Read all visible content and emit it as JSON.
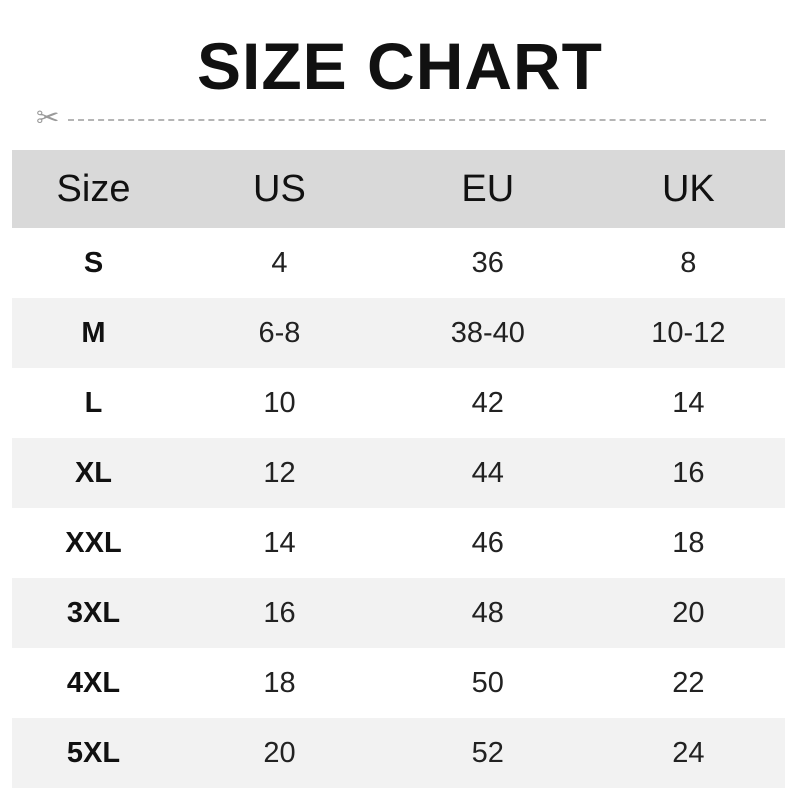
{
  "title": "SIZE CHART",
  "headers": [
    "Size",
    "US",
    "EU",
    "UK"
  ],
  "rows": [
    [
      "S",
      "4",
      "36",
      "8"
    ],
    [
      "M",
      "6-8",
      "38-40",
      "10-12"
    ],
    [
      "L",
      "10",
      "42",
      "14"
    ],
    [
      "XL",
      "12",
      "44",
      "16"
    ],
    [
      "XXL",
      "14",
      "46",
      "18"
    ],
    [
      "3XL",
      "16",
      "48",
      "20"
    ],
    [
      "4XL",
      "18",
      "50",
      "22"
    ],
    [
      "5XL",
      "20",
      "52",
      "24"
    ]
  ],
  "colors": {
    "header_bg": "#d9d9d9",
    "alt_row_bg": "#f2f2f2"
  },
  "icons": {
    "cut_line": "scissors-icon"
  }
}
